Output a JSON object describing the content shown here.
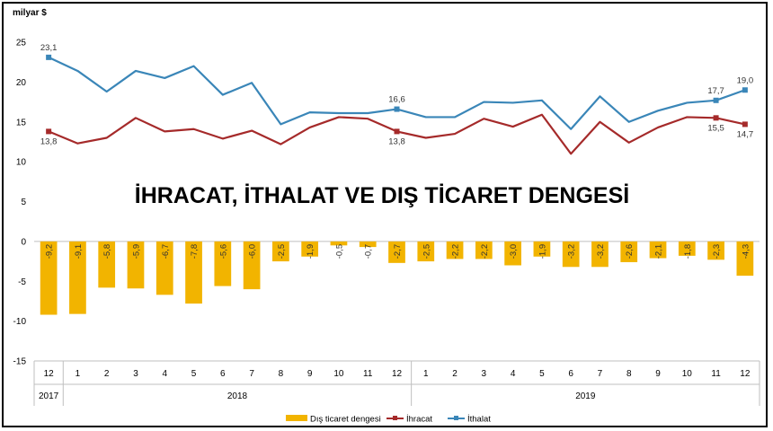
{
  "chart_data": {
    "type": "bar+line",
    "title": "İHRACAT, İTHALAT VE DIŞ TİCARET DENGESİ",
    "unit_label": "milyar $",
    "months": [
      "12",
      "1",
      "2",
      "3",
      "4",
      "5",
      "6",
      "7",
      "8",
      "9",
      "10",
      "11",
      "12",
      "1",
      "2",
      "3",
      "4",
      "5",
      "6",
      "7",
      "8",
      "9",
      "10",
      "11",
      "12"
    ],
    "years": [
      {
        "label": "2017",
        "count": 1
      },
      {
        "label": "2018",
        "count": 12
      },
      {
        "label": "2019",
        "count": 12
      }
    ],
    "ylim": [
      -15,
      25
    ],
    "yticks": [
      25,
      20,
      15,
      10,
      5,
      0,
      -5,
      -10,
      -15
    ],
    "series": [
      {
        "name": "Dış ticaret dengesi",
        "type": "bar",
        "color": "#F2B400",
        "values": [
          -9.2,
          -9.1,
          -5.8,
          -5.9,
          -6.7,
          -7.8,
          -5.6,
          -6.0,
          -2.5,
          -1.9,
          -0.5,
          -0.7,
          -2.7,
          -2.5,
          -2.2,
          -2.2,
          -3.0,
          -1.9,
          -3.2,
          -3.2,
          -2.6,
          -2.1,
          -1.8,
          -2.3,
          -4.3
        ],
        "labels": [
          "-9,2",
          "-9,1",
          "-5,8",
          "-5,9",
          "-6,7",
          "-7,8",
          "-5,6",
          "-6,0",
          "-2,5",
          "-1,9",
          "-0,5",
          "-0,7",
          "-2,7",
          "-2,5",
          "-2,2",
          "-2,2",
          "-3,0",
          "-1,9",
          "-3,2",
          "-3,2",
          "-2,6",
          "-2,1",
          "-1,8",
          "-2,3",
          "-4,3"
        ]
      },
      {
        "name": "İhracat",
        "type": "line",
        "color": "#A52A2A",
        "values": [
          13.8,
          12.3,
          13.0,
          15.5,
          13.8,
          14.1,
          12.9,
          13.9,
          12.2,
          14.3,
          15.6,
          15.4,
          13.8,
          13.0,
          13.5,
          15.4,
          14.4,
          15.9,
          11.0,
          15.0,
          12.4,
          14.3,
          15.6,
          15.5,
          14.7
        ],
        "labels": {
          "0": "13,8",
          "12": "13,8",
          "23": "15,5",
          "24": "14,7"
        }
      },
      {
        "name": "İthalat",
        "type": "line",
        "color": "#3A86B8",
        "values": [
          23.1,
          21.4,
          18.8,
          21.4,
          20.5,
          22.0,
          18.4,
          19.9,
          14.7,
          16.2,
          16.1,
          16.1,
          16.6,
          15.6,
          15.6,
          17.5,
          17.4,
          17.7,
          14.1,
          18.2,
          15.0,
          16.4,
          17.4,
          17.7,
          19.0
        ],
        "labels": {
          "0": "23,1",
          "12": "16,6",
          "23": "17,7",
          "24": "19,0"
        }
      }
    ],
    "legend_position": "bottom",
    "grid": false
  }
}
